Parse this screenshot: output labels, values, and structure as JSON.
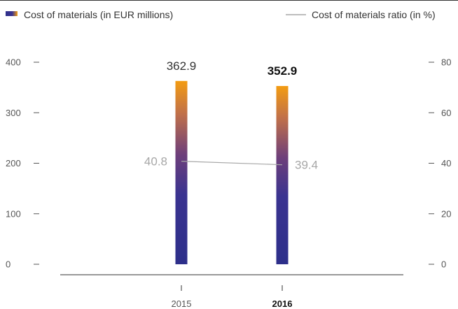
{
  "chart_data": {
    "type": "bar",
    "categories": [
      "2015",
      "2016"
    ],
    "highlight_category": "2016",
    "series": [
      {
        "name": "Cost of materials (in EUR millions)",
        "kind": "bar",
        "axis": "left",
        "values": [
          362.9,
          352.9
        ],
        "labels": [
          "362.9",
          "352.9"
        ],
        "color_top": "#f39c12",
        "color_bottom": "#2d2f8a"
      },
      {
        "name": "Cost of materials ratio (in %)",
        "kind": "line",
        "axis": "right",
        "values": [
          40.8,
          39.4
        ],
        "labels": [
          "40.8",
          "39.4"
        ],
        "color": "#a7a7a7"
      }
    ],
    "y_left": {
      "min": 0,
      "max": 400,
      "ticks": [
        "0",
        "100",
        "200",
        "300",
        "400"
      ]
    },
    "y_right": {
      "min": 0,
      "max": 80,
      "ticks": [
        "0",
        "20",
        "40",
        "60",
        "80"
      ]
    },
    "legend_position": "top",
    "grid": false
  }
}
